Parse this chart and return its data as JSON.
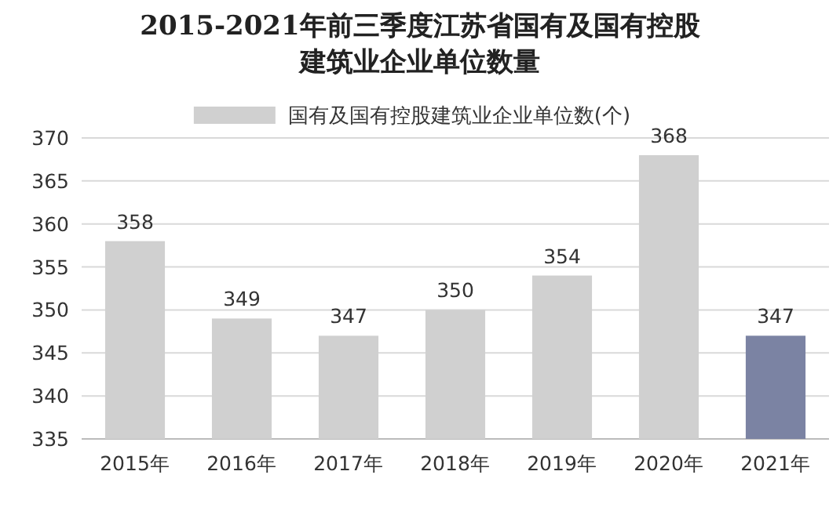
{
  "chart_data": {
    "type": "bar",
    "title": "2015-2021年前三季度江苏省国有及国有控股建筑业企业单位数量",
    "categories": [
      "2015年",
      "2016年",
      "2017年",
      "2018年",
      "2019年",
      "2020年",
      "2021年"
    ],
    "series": [
      {
        "name": "国有及国有控股建筑业企业单位数(个)",
        "color": "#d0d0d0",
        "colors": [
          "#d0d0d0",
          "#d0d0d0",
          "#d0d0d0",
          "#d0d0d0",
          "#d0d0d0",
          "#d0d0d0",
          "#7b83a3"
        ],
        "values": [
          358,
          349,
          347,
          350,
          354,
          368,
          347
        ]
      }
    ],
    "ylim": [
      335,
      370
    ],
    "yticks": [
      335,
      340,
      345,
      350,
      355,
      360,
      365,
      370
    ],
    "grid": "y",
    "legend": "top",
    "data_labels": true
  }
}
